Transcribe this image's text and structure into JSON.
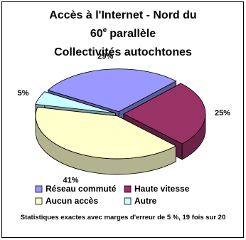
{
  "chart_data": {
    "type": "pie3d",
    "title": [
      "Accès à l'Internet - Nord du",
      "60",
      "e",
      "parallèle",
      "Collectivités autochtones"
    ],
    "categories": [
      "Réseau commuté",
      "Haute vitesse",
      "Aucun accès",
      "Autre"
    ],
    "values": [
      29,
      25,
      41,
      5
    ],
    "value_labels": [
      "29%",
      "25%",
      "41%",
      "5%"
    ],
    "colors": [
      "#9999ff",
      "#993366",
      "#ffffcc",
      "#ccffff"
    ],
    "footnote": "Statistiques exactes avec marges d'erreur de 5 %,  19 fois sur 20"
  }
}
